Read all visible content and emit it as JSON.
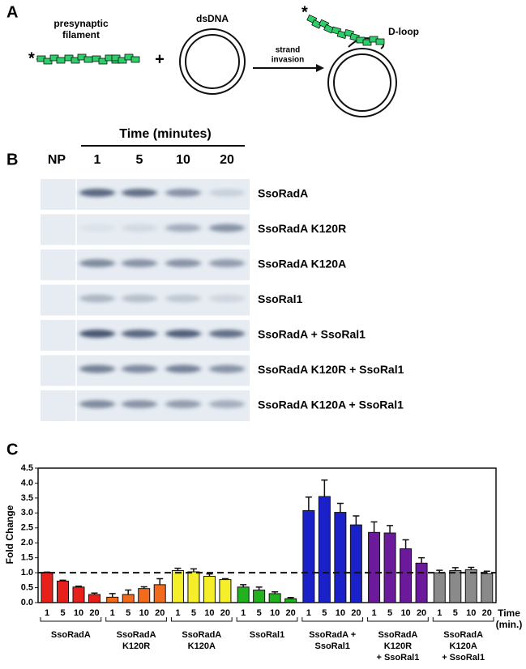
{
  "panel_a": {
    "label": "A",
    "filament_label": [
      "presynaptic",
      "filament"
    ],
    "star": "*",
    "plus": "+",
    "dsdna_label": "dsDNA",
    "arrow_label": [
      "strand",
      "invasion"
    ],
    "dloop_label": "D-loop"
  },
  "panel_b": {
    "label": "B",
    "time_title": "Time (minutes)",
    "lanes": [
      "NP",
      "1",
      "5",
      "10",
      "20"
    ],
    "rows": [
      "SsoRadA",
      "SsoRadA K120R",
      "SsoRadA K120A",
      "SsoRal1",
      "SsoRadA + SsoRal1",
      "SsoRadA K120R + SsoRal1",
      "SsoRadA K120A + SsoRal1"
    ]
  },
  "chart_data": {
    "type": "bar",
    "panel_label": "C",
    "y_label": "Fold Change",
    "x_label": [
      "Time",
      "(min.)"
    ],
    "categories": [
      "1",
      "5",
      "10",
      "20"
    ],
    "ylim": [
      0,
      4.5
    ],
    "yticks": [
      {
        "value": 0,
        "label": "0.0"
      },
      {
        "value": 0.5,
        "label": "0.5"
      },
      {
        "value": 1,
        "label": "1.0"
      },
      {
        "value": 1.5,
        "label": "1.5"
      },
      {
        "value": 2,
        "label": "2.0"
      },
      {
        "value": 2.5,
        "label": "2.5"
      },
      {
        "value": 3,
        "label": "3.0"
      },
      {
        "value": 3.5,
        "label": "3.5"
      },
      {
        "value": 4,
        "label": "4.0"
      },
      {
        "value": 4.5,
        "label": "4.5"
      }
    ],
    "reference_line": 1,
    "groups": [
      {
        "label": [
          "SsoRadA"
        ],
        "color": "#e8201c",
        "values": [
          1.0,
          0.72,
          0.52,
          0.27
        ],
        "errors": [
          0.02,
          0.03,
          0.03,
          0.05
        ]
      },
      {
        "label": [
          "SsoRadA",
          "K120R"
        ],
        "color": "#f26a1b",
        "values": [
          0.18,
          0.27,
          0.47,
          0.6
        ],
        "errors": [
          0.12,
          0.15,
          0.06,
          0.2
        ]
      },
      {
        "label": [
          "SsoRadA",
          "K120A"
        ],
        "color": "#f5ee2a",
        "values": [
          1.07,
          1.03,
          0.88,
          0.77
        ],
        "errors": [
          0.08,
          0.1,
          0.08,
          0.03
        ]
      },
      {
        "label": [
          "SsoRal1"
        ],
        "color": "#23b21f",
        "values": [
          0.52,
          0.42,
          0.3,
          0.13
        ],
        "errors": [
          0.08,
          0.1,
          0.06,
          0.04
        ]
      },
      {
        "label": [
          "SsoRadA +",
          "SsoRal1"
        ],
        "color": "#1b21c8",
        "values": [
          3.08,
          3.55,
          3.02,
          2.6
        ],
        "errors": [
          0.45,
          0.55,
          0.3,
          0.3
        ]
      },
      {
        "label": [
          "SsoRadA",
          "K120R",
          "+ SsoRal1"
        ],
        "color": "#6a1a9a",
        "values": [
          2.35,
          2.33,
          1.8,
          1.32
        ],
        "errors": [
          0.35,
          0.25,
          0.3,
          0.18
        ]
      },
      {
        "label": [
          "SsoRadA",
          "K120A",
          "+ SsoRal1"
        ],
        "color": "#8a8a8a",
        "values": [
          1.0,
          1.07,
          1.1,
          0.97
        ],
        "errors": [
          0.08,
          0.1,
          0.08,
          0.08
        ]
      }
    ]
  }
}
